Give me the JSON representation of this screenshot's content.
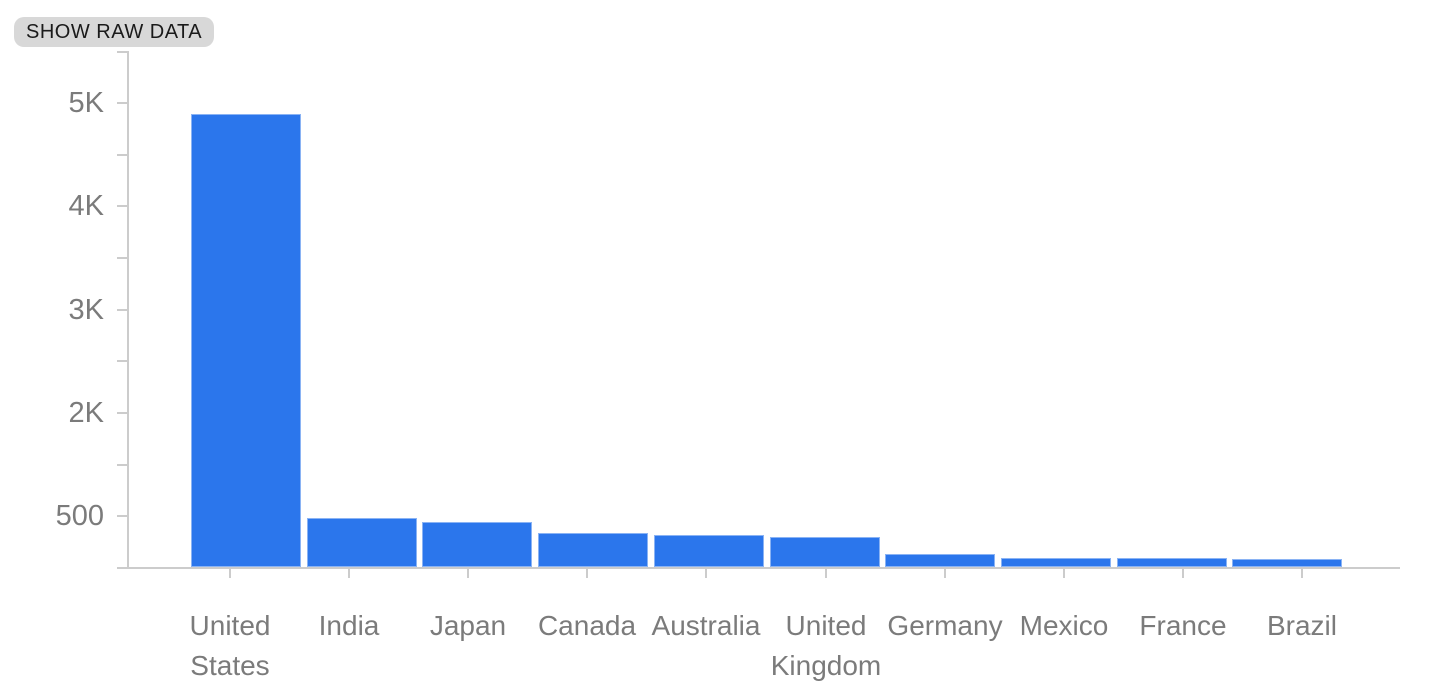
{
  "controls": {
    "show_raw_data_label": "SHOW RAW DATA"
  },
  "chart_data": {
    "type": "bar",
    "title": "",
    "xlabel": "",
    "ylabel": "",
    "categories": [
      "United States",
      "India",
      "Japan",
      "Canada",
      "Australia",
      "United Kingdom",
      "Germany",
      "Mexico",
      "France",
      "Brazil"
    ],
    "values": [
      4870,
      530,
      480,
      365,
      345,
      320,
      140,
      95,
      95,
      85
    ],
    "y_tick_labels": [
      "5K",
      "",
      "4K",
      "",
      "3K",
      "",
      "2K",
      "",
      "500"
    ],
    "ylim": [
      0,
      5500
    ],
    "grid": "off",
    "legend": "none",
    "bar_color": "#2b76ec",
    "axis_color": "#cccccc",
    "label_color": "#7b7b7b"
  }
}
